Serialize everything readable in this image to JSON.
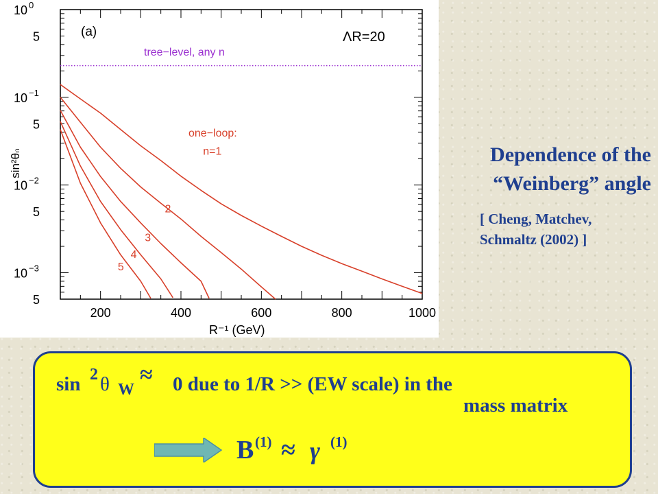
{
  "chart_data": {
    "type": "line",
    "panel_label": "(a)",
    "lambda_label": "ΛR=20",
    "xlabel": "R⁻¹ (GeV)",
    "ylabel": "sin²θₙ",
    "xlim": [
      100,
      1000
    ],
    "ylim": [
      0.0005,
      1
    ],
    "yscale": "log",
    "x_ticks": [
      200,
      400,
      600,
      800,
      1000
    ],
    "y_tick_labels": [
      {
        "value": 1,
        "label": "10",
        "exp": "0"
      },
      {
        "value": 0.5,
        "label": "5",
        "exp": ""
      },
      {
        "value": 0.1,
        "label": "10",
        "exp": "−1"
      },
      {
        "value": 0.05,
        "label": "5",
        "exp": ""
      },
      {
        "value": 0.01,
        "label": "10",
        "exp": "−2"
      },
      {
        "value": 0.005,
        "label": "5",
        "exp": ""
      },
      {
        "value": 0.001,
        "label": "10",
        "exp": "−3"
      },
      {
        "value": 0.0005,
        "label": "5",
        "exp": ""
      }
    ],
    "tree_level": {
      "label": "tree−level, any n",
      "value": 0.23,
      "color": "#9b30d0"
    },
    "one_loop_label": "one−loop:",
    "series_color": "#d8402a",
    "series": [
      {
        "name": "n=1",
        "x": [
          100,
          150,
          200,
          250,
          300,
          350,
          400,
          450,
          500,
          550,
          600,
          650,
          700,
          750,
          800,
          850,
          900,
          950,
          1000
        ],
        "values": [
          0.14,
          0.096,
          0.066,
          0.043,
          0.028,
          0.019,
          0.0126,
          0.0087,
          0.0061,
          0.0045,
          0.0034,
          0.0026,
          0.002,
          0.00158,
          0.00127,
          0.00104,
          0.00085,
          0.0007,
          0.00058
        ]
      },
      {
        "name": "2",
        "x": [
          100,
          150,
          200,
          250,
          300,
          350,
          400,
          450,
          500,
          550,
          600,
          635
        ],
        "values": [
          0.1,
          0.052,
          0.027,
          0.0155,
          0.0095,
          0.0062,
          0.0041,
          0.0026,
          0.0017,
          0.0011,
          0.00069,
          0.0005
        ]
      },
      {
        "name": "3",
        "x": [
          100,
          150,
          200,
          250,
          300,
          350,
          400,
          450,
          470
        ],
        "values": [
          0.071,
          0.027,
          0.0125,
          0.0065,
          0.0037,
          0.00215,
          0.0013,
          0.0008,
          0.00051
        ]
      },
      {
        "name": "4",
        "x": [
          100,
          150,
          200,
          250,
          300,
          350,
          380
        ],
        "values": [
          0.053,
          0.0165,
          0.0065,
          0.0031,
          0.0016,
          0.00085,
          0.00052
        ]
      },
      {
        "name": "5",
        "x": [
          100,
          150,
          200,
          250,
          300,
          325
        ],
        "values": [
          0.043,
          0.0105,
          0.0037,
          0.0016,
          0.0008,
          0.00051
        ]
      }
    ],
    "curve_labels": [
      {
        "text": "n=1",
        "x": 455,
        "y": 0.0222
      },
      {
        "text": "2",
        "x": 360,
        "y": 0.0049
      },
      {
        "text": "3",
        "x": 310,
        "y": 0.0023
      },
      {
        "text": "4",
        "x": 275,
        "y": 0.00148
      },
      {
        "text": "5",
        "x": 243,
        "y": 0.00107
      }
    ]
  },
  "caption": {
    "line1": "Dependence of the",
    "line2": "“Weinberg” angle"
  },
  "citation": {
    "line1": "[ Cheng, Matchev,",
    "line2": "Schmaltz   (2002) ]"
  },
  "statement": {
    "sin": "sin",
    "sup2": "2",
    "theta": "θ",
    "sub_w": "W",
    "approx": "≈",
    "rest": "0 due to 1/R >> (EW scale) in the",
    "line2": "mass matrix"
  },
  "relation": {
    "b": "B",
    "b_sup": "(1)",
    "approx": "≈",
    "gamma": "γ",
    "gamma_sup": "(1)"
  },
  "colors": {
    "text_blue": "#1f3f8f",
    "box_yellow": "#ffff1a",
    "arrow": "#6fb7b3"
  }
}
